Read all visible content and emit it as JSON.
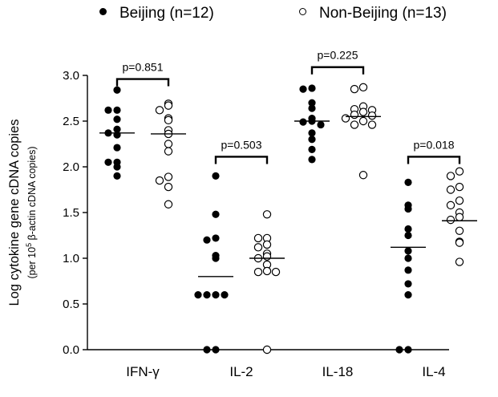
{
  "chart_data": {
    "type": "scatter",
    "legend_position": "top",
    "grid": false,
    "ylabel": "Log cytokine gene cDNA copies",
    "ylabel_sub_prefix": "(per 10",
    "ylabel_sub_exp": "5",
    "ylabel_sub_suffix": " β-actin cDNA copies)",
    "ylim": [
      0,
      3.0
    ],
    "yticks": [
      "0.0",
      "0.5",
      "1.0",
      "1.5",
      "2.0",
      "2.5",
      "3.0"
    ],
    "categories": [
      "IFN-γ",
      "IL-2",
      "IL-18",
      "IL-4"
    ],
    "series": [
      {
        "name": "Beijing (n=12)",
        "marker": "filled-circle",
        "color": "#000000",
        "medians": [
          2.37,
          0.8,
          2.5,
          1.12
        ],
        "values": [
          [
            2.84,
            2.62,
            2.62,
            2.52,
            2.41,
            2.37,
            2.21,
            2.05,
            2.05,
            2.0,
            1.9,
            2.35
          ],
          [
            1.9,
            1.48,
            1.22,
            1.2,
            1.03,
            1.0,
            0.6,
            0.6,
            0.6,
            0.6,
            0.0,
            0.0
          ],
          [
            2.86,
            2.85,
            2.7,
            2.64,
            2.53,
            2.5,
            2.49,
            2.46,
            2.3,
            2.19,
            2.08,
            2.37
          ],
          [
            1.83,
            1.58,
            1.54,
            1.32,
            1.25,
            1.08,
            0.87,
            0.72,
            0.6,
            0.0,
            0.0,
            1.0
          ]
        ]
      },
      {
        "name": "Non-Beijing (n=13)",
        "marker": "open-circle",
        "color": "#000000",
        "medians": [
          2.36,
          1.0,
          2.55,
          1.41
        ],
        "values": [
          [
            2.69,
            2.67,
            2.62,
            2.53,
            2.51,
            2.4,
            2.36,
            2.25,
            2.17,
            1.89,
            1.85,
            1.78,
            1.59
          ],
          [
            1.48,
            1.22,
            1.22,
            1.15,
            1.12,
            1.05,
            1.02,
            1.0,
            0.93,
            0.86,
            0.85,
            0.85,
            0.0
          ],
          [
            2.87,
            2.85,
            2.66,
            2.63,
            2.62,
            2.6,
            2.57,
            2.56,
            2.53,
            2.5,
            2.46,
            2.46,
            1.91
          ],
          [
            1.95,
            1.9,
            1.78,
            1.75,
            1.63,
            1.58,
            1.5,
            1.45,
            1.42,
            1.3,
            1.18,
            1.17,
            0.96
          ]
        ]
      }
    ],
    "annotations": [
      {
        "category": 0,
        "text": "p=0.851",
        "bracket_y": 2.96
      },
      {
        "category": 1,
        "text": "p=0.503",
        "bracket_y": 2.11
      },
      {
        "category": 2,
        "text": "p=0.225",
        "bracket_y": 3.09
      },
      {
        "category": 3,
        "text": "p=0.018",
        "bracket_y": 2.11
      }
    ]
  }
}
